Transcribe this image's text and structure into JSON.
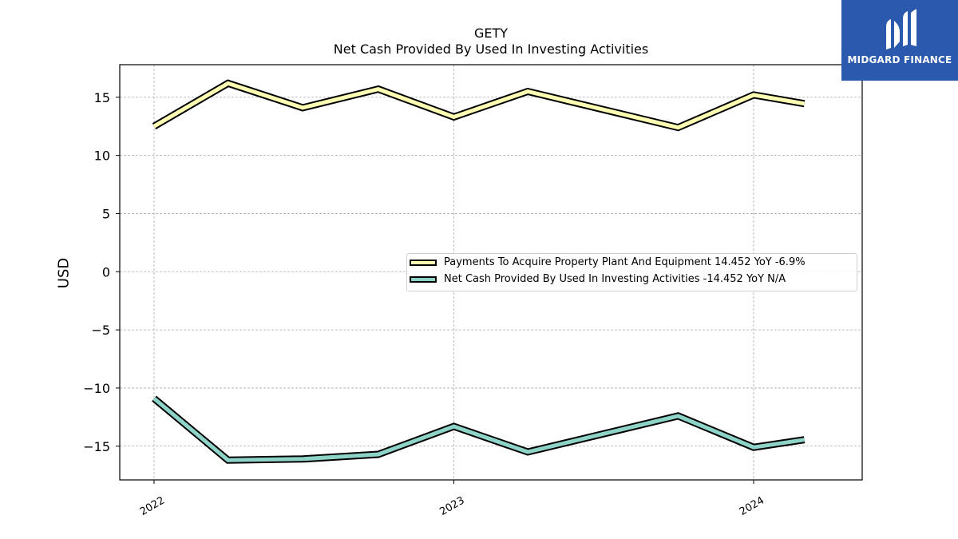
{
  "chart_data": {
    "type": "line",
    "title": "GETY",
    "subtitle": "Net Cash Provided By Used In Investing Activities",
    "xlabel": "",
    "ylabel": "USD",
    "x": [
      "2022-01-01",
      "2022-04-01",
      "2022-07-01",
      "2022-10-01",
      "2023-01-01",
      "2023-04-01",
      "2023-07-01",
      "2023-10-01",
      "2024-01-01",
      "2024-04-01"
    ],
    "xticks": [
      "2022",
      "2023",
      "2024"
    ],
    "yticks": [
      "15",
      "10",
      "5",
      "0",
      "−5",
      "−10",
      "−15"
    ],
    "ylim": [
      -17.9,
      17.8
    ],
    "grid": true,
    "legend_position": "center-right",
    "series": [
      {
        "name": "Payments To Acquire Property Plant And Equipment  14.452 YoY -6.9%",
        "values": [
          12.5,
          16.2,
          14.1,
          15.7,
          13.3,
          15.5,
          null,
          12.4,
          15.2,
          14.45
        ],
        "color": "#ffffb3"
      },
      {
        "name": "Net Cash Provided By Used In Investing Activities  -14.452 YoY N/A",
        "values": [
          -10.9,
          -16.2,
          -16.1,
          -15.7,
          -13.3,
          -15.5,
          null,
          -12.4,
          -15.1,
          -14.45
        ],
        "color": "#8dd3c7"
      }
    ]
  },
  "logo": {
    "text": "MIDGARD FINANCE"
  }
}
